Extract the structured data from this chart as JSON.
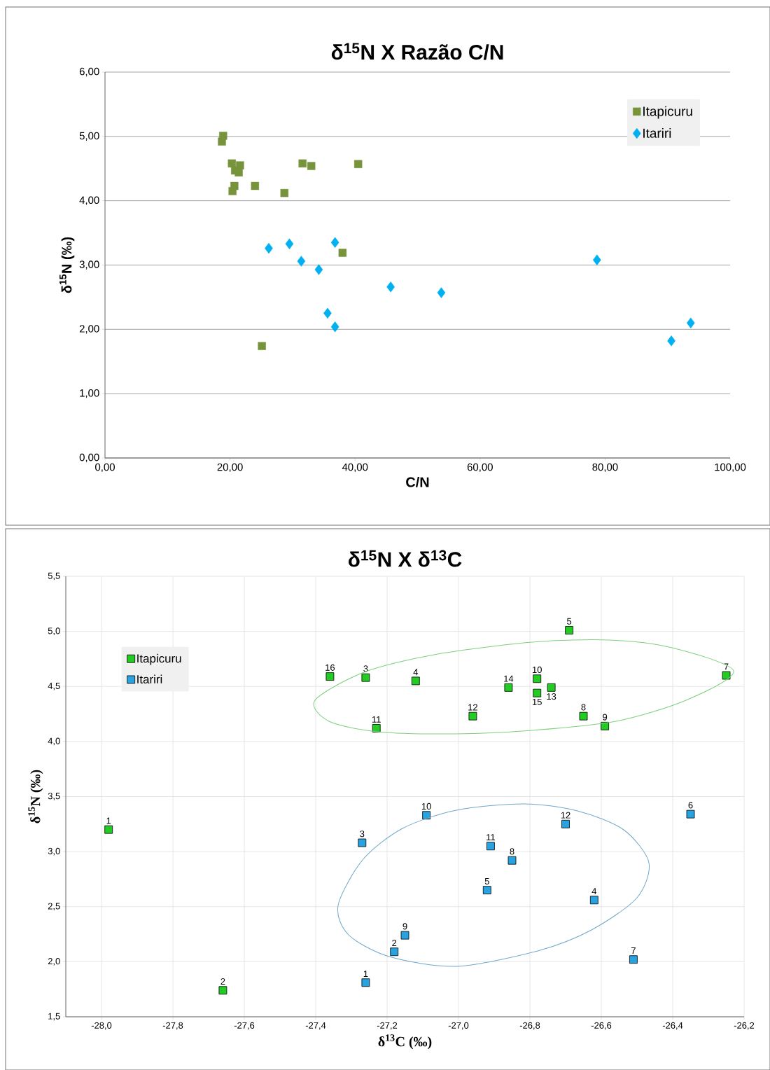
{
  "chart_data": [
    {
      "type": "scatter",
      "title": "δ$^{15}$N   X   Razão C/N",
      "xlabel": "C/N",
      "ylabel": "δ$^{15}$N  (‰)",
      "xlim": [
        0,
        100
      ],
      "ylim": [
        0,
        6
      ],
      "xticks": [
        {
          "value": 0,
          "label": "0,00"
        },
        {
          "value": 20,
          "label": "20,00"
        },
        {
          "value": 40,
          "label": "40,00"
        },
        {
          "value": 60,
          "label": "60,00"
        },
        {
          "value": 80,
          "label": "80,00"
        },
        {
          "value": 100,
          "label": "100,00"
        }
      ],
      "yticks": [
        {
          "value": 0,
          "label": "0,00"
        },
        {
          "value": 1,
          "label": "1,00"
        },
        {
          "value": 2,
          "label": "2,00"
        },
        {
          "value": 3,
          "label": "3,00"
        },
        {
          "value": 4,
          "label": "4,00"
        },
        {
          "value": 5,
          "label": "5,00"
        },
        {
          "value": 6,
          "label": "6,00"
        }
      ],
      "grid": "y",
      "legend": "top right",
      "series": [
        {
          "name": "Itapicuru",
          "color": "#77933c",
          "marker": "square",
          "x": [
            18.9,
            18.7,
            20.3,
            21.6,
            20.8,
            21.4,
            20.7,
            20.4,
            24.0,
            28.7,
            31.6,
            33.0,
            40.5,
            38.0,
            25.1
          ],
          "values": [
            5.01,
            4.92,
            4.58,
            4.55,
            4.47,
            4.44,
            4.23,
            4.15,
            4.23,
            4.12,
            4.58,
            4.54,
            4.57,
            3.19,
            1.74
          ]
        },
        {
          "name": "Itariri",
          "color": "#00b0f0",
          "marker": "diamond",
          "x": [
            26.2,
            29.5,
            31.4,
            34.2,
            36.8,
            45.7,
            53.8,
            35.6,
            36.8,
            78.7,
            90.6,
            93.7
          ],
          "values": [
            3.26,
            3.33,
            3.06,
            2.93,
            3.35,
            2.66,
            2.57,
            2.25,
            2.04,
            3.08,
            1.82,
            2.1
          ]
        }
      ]
    },
    {
      "type": "scatter",
      "title": "δ$^{15}$N  X  δ$^{13}$C",
      "xlabel": "δ$^{13}$C (‰)",
      "ylabel": "δ$^{15}$N  (‰)",
      "xlim": [
        -28.1,
        -26.2
      ],
      "ylim": [
        1.5,
        5.5
      ],
      "xticks": [
        {
          "value": -28.0,
          "label": "-28,0"
        },
        {
          "value": -27.8,
          "label": "-27,8"
        },
        {
          "value": -27.6,
          "label": "-27,6"
        },
        {
          "value": -27.4,
          "label": "-27,4"
        },
        {
          "value": -27.2,
          "label": "-27,2"
        },
        {
          "value": -27.0,
          "label": "-27,0"
        },
        {
          "value": -26.8,
          "label": "-26,8"
        },
        {
          "value": -26.6,
          "label": "-26,6"
        },
        {
          "value": -26.4,
          "label": "-26,4"
        },
        {
          "value": -26.2,
          "label": "-26,2"
        }
      ],
      "yticks": [
        {
          "value": 1.5,
          "label": "1,5"
        },
        {
          "value": 2.0,
          "label": "2,0"
        },
        {
          "value": 2.5,
          "label": "2,5"
        },
        {
          "value": 3.0,
          "label": "3,0"
        },
        {
          "value": 3.5,
          "label": "3,5"
        },
        {
          "value": 4.0,
          "label": "4,0"
        },
        {
          "value": 4.5,
          "label": "4,5"
        },
        {
          "value": 5.0,
          "label": "5,0"
        },
        {
          "value": 5.5,
          "label": "5,5"
        }
      ],
      "grid": true,
      "legend": "top left",
      "annotations": [
        {
          "text": "1",
          "x": -27.98,
          "y": 3.2
        },
        {
          "text": "2",
          "x": -27.66,
          "y": 1.74
        },
        {
          "text": "3",
          "x": -27.26,
          "y": 4.58
        },
        {
          "text": "4",
          "x": -27.12,
          "y": 4.55
        },
        {
          "text": "5",
          "x": -26.69,
          "y": 5.01
        },
        {
          "text": "7",
          "x": -26.25,
          "y": 4.6
        },
        {
          "text": "8",
          "x": -26.65,
          "y": 4.23
        },
        {
          "text": "9",
          "x": -26.59,
          "y": 4.14
        },
        {
          "text": "10",
          "x": -26.78,
          "y": 4.57
        },
        {
          "text": "11",
          "x": -27.23,
          "y": 4.12
        },
        {
          "text": "12",
          "x": -26.96,
          "y": 4.23
        },
        {
          "text": "13",
          "x": -26.74,
          "y": 4.49
        },
        {
          "text": "14",
          "x": -26.86,
          "y": 4.49
        },
        {
          "text": "15",
          "x": -26.78,
          "y": 4.44
        },
        {
          "text": "16",
          "x": -27.36,
          "y": 4.59
        },
        {
          "text": "1",
          "x": -27.26,
          "y": 1.81
        },
        {
          "text": "2",
          "x": -27.18,
          "y": 2.09
        },
        {
          "text": "3",
          "x": -27.27,
          "y": 3.08
        },
        {
          "text": "4",
          "x": -26.62,
          "y": 2.56
        },
        {
          "text": "5",
          "x": -26.92,
          "y": 2.65
        },
        {
          "text": "6",
          "x": -26.35,
          "y": 3.34
        },
        {
          "text": "7",
          "x": -26.51,
          "y": 2.02
        },
        {
          "text": "8",
          "x": -26.85,
          "y": 2.92
        },
        {
          "text": "9",
          "x": -27.15,
          "y": 2.24
        },
        {
          "text": "10",
          "x": -27.09,
          "y": 3.33
        },
        {
          "text": "11",
          "x": -26.91,
          "y": 3.05
        },
        {
          "text": "12",
          "x": -26.7,
          "y": 3.25
        }
      ],
      "series": [
        {
          "name": "Itapicuru",
          "color": "#22cc22",
          "marker": "square",
          "x": [
            -27.98,
            -27.66,
            -27.26,
            -27.12,
            -26.69,
            -26.25,
            -26.65,
            -26.59,
            -26.78,
            -27.23,
            -26.96,
            -26.74,
            -26.86,
            -26.78,
            -27.36
          ],
          "values": [
            3.2,
            1.74,
            4.58,
            4.55,
            5.01,
            4.6,
            4.23,
            4.14,
            4.57,
            4.12,
            4.23,
            4.49,
            4.49,
            4.44,
            4.59
          ]
        },
        {
          "name": "Itariri",
          "color": "#29a3e0",
          "marker": "square",
          "x": [
            -27.26,
            -27.18,
            -27.27,
            -26.62,
            -26.92,
            -26.35,
            -26.51,
            -26.85,
            -27.15,
            -27.09,
            -26.91,
            -26.7
          ],
          "values": [
            1.81,
            2.09,
            3.08,
            2.56,
            2.65,
            3.34,
            2.02,
            2.92,
            2.24,
            3.33,
            3.05,
            3.25
          ]
        }
      ]
    }
  ]
}
